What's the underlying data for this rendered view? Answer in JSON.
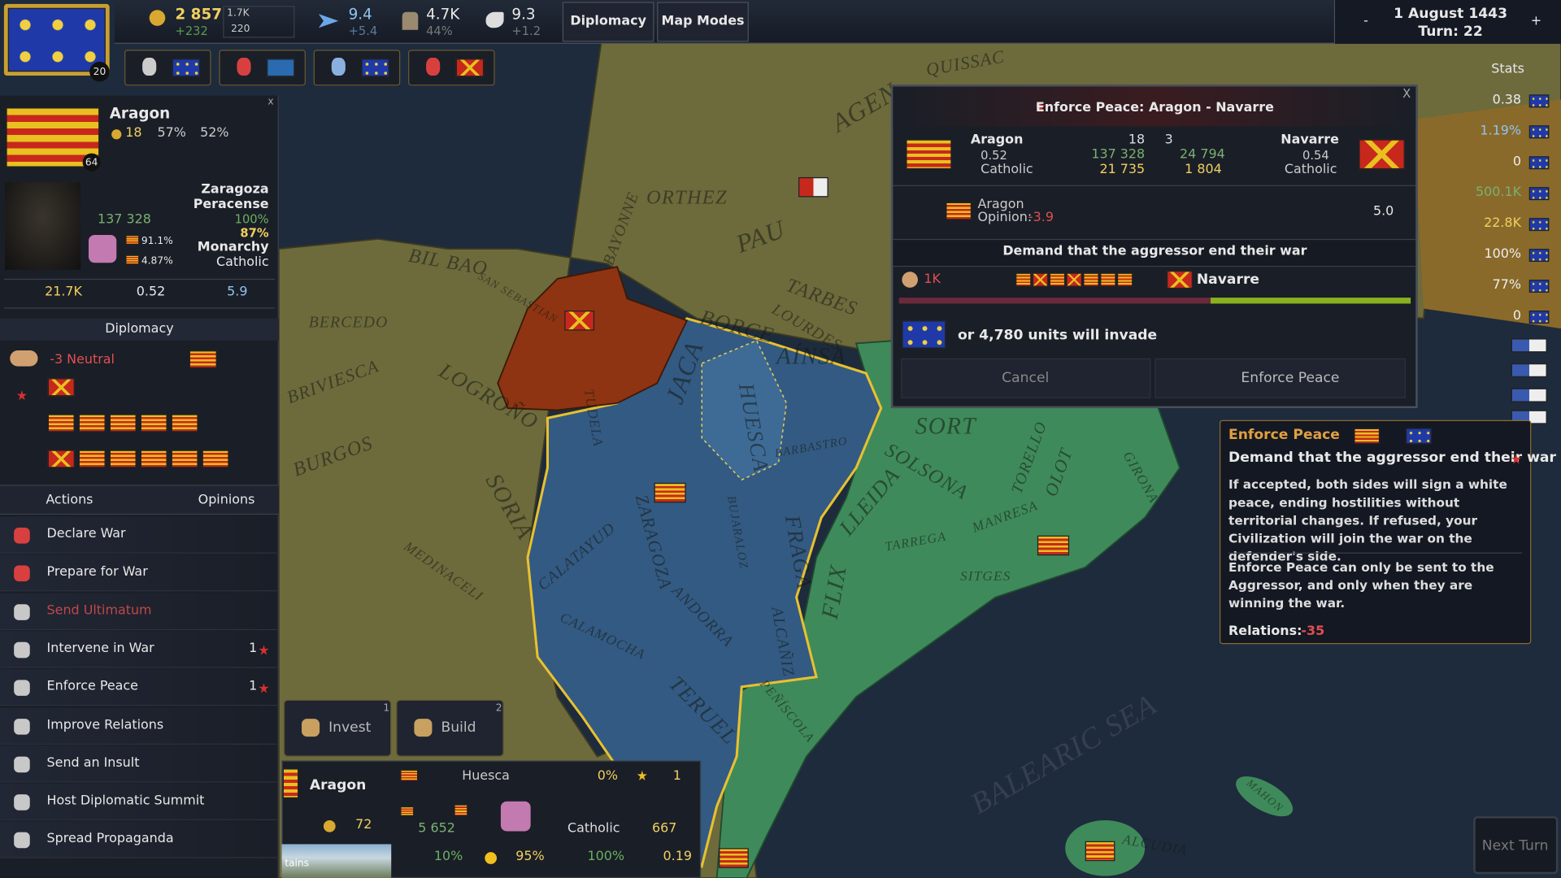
{
  "top_bar": {
    "player_level": "20",
    "gold": "2 857",
    "gold_change": "+232",
    "graph_max": "1.7K",
    "graph_min": "220",
    "manpower": "9.4",
    "manpower_change": "+5.4",
    "army": "4.7K",
    "army_pct": "44%",
    "diplomacy": "9.3",
    "diplomacy_change": "+1.2",
    "buttons": [
      "Diplomacy",
      "Map Modes"
    ],
    "zoom_out": "-",
    "zoom_in": "+",
    "date": "1 August 1443",
    "turn": "Turn: 22"
  },
  "country_panel": {
    "close": "x",
    "name": "Aragon",
    "level": "64",
    "gold": "18",
    "stability": "57%",
    "legitimacy": "52%",
    "manpower": "137 328",
    "capital": "Zaragoza",
    "ruler": "Peracense",
    "loyalty": "100%",
    "happiness": "87%",
    "culture_share": "91.1%",
    "minority_share": "4.87%",
    "government": "Monarchy",
    "religion": "Catholic",
    "industry": "21.7K",
    "tech": "0.52",
    "speed": "5.9"
  },
  "diplomacy": {
    "header": "Diplomacy",
    "relation": "-3 Neutral",
    "tabs": [
      "Actions",
      "Opinions"
    ],
    "actions": [
      {
        "label": "Declare War"
      },
      {
        "label": "Prepare for War"
      },
      {
        "label": "Send Ultimatum"
      },
      {
        "label": "Intervene in War",
        "count": "1"
      },
      {
        "label": "Enforce Peace",
        "count": "1"
      },
      {
        "label": "Improve Relations"
      },
      {
        "label": "Send an Insult"
      },
      {
        "label": "Host Diplomatic Summit"
      },
      {
        "label": "Spread Propaganda"
      }
    ]
  },
  "province_panel": {
    "buttons": [
      {
        "label": "Invest",
        "hotkey": "1"
      },
      {
        "label": "Build",
        "hotkey": "2"
      }
    ],
    "owner": "Aragon",
    "gold": "72",
    "name": "Huesca",
    "unrest": "0%",
    "rank": "1",
    "population": "5 652",
    "religion": "Catholic",
    "buildings": "667",
    "growth": "10%",
    "happiness": "95%",
    "control": "100%",
    "income": "0.19",
    "terrain": "tains"
  },
  "dialog": {
    "close": "X",
    "title": "Enforce Peace: Aragon - Navarre",
    "left": {
      "name": "Aragon",
      "tech": "0.52",
      "religion": "Catholic"
    },
    "middle": [
      "18",
      "3",
      "137 328",
      "24 794",
      "21 735",
      "1 804"
    ],
    "right": {
      "name": "Navarre",
      "tech": "0.54",
      "religion": "Catholic"
    },
    "opinion": {
      "name": "Aragon",
      "label": "Opinion:",
      "value": "-3.9",
      "score": "5.0"
    },
    "demand": "Demand that the aggressor end their war",
    "war": {
      "casualties": "1K",
      "defender": "Navarre"
    },
    "invade": "or 4,780 units will invade",
    "buttons": [
      "Cancel",
      "Enforce Peace"
    ]
  },
  "tooltip": {
    "title": "Enforce Peace",
    "subtitle": "Demand that the aggressor end their war",
    "paragraphs": [
      "If accepted, both sides will sign a white peace, ending hostilities without territorial changes. If refused, your Civilization will join the war on the defender's side.",
      "Enforce Peace can only be sent to the Aggressor, and only when they are winning the war."
    ],
    "relations_label": "Relations:",
    "relations_value": "-35"
  },
  "stats_panel": {
    "title": "Stats",
    "values": [
      "0.38",
      "1.19%",
      "0",
      "500.1K",
      "22.8K",
      "100%",
      "77%",
      "0"
    ]
  },
  "next_turn": "Next Turn",
  "map_labels": [
    "AGEN",
    "QUISSAC",
    "ORTHEZ",
    "PAU",
    "BAYONNE",
    "TARBES",
    "LOURDES",
    "BORCE",
    "BIL BAO",
    "SAN SEBASTIAN",
    "BERCEDO",
    "BRIVIESCA",
    "LOGROÑO",
    "BURGOS",
    "SORIA",
    "MEDINACELI",
    "TUDELA",
    "JACA",
    "HUESCA",
    "AÍNSA",
    "BARBASTRO",
    "ZARAGOZA",
    "BUJARALOZ",
    "FRAGA",
    "CALATAYUD",
    "ANDORRA",
    "CALAMOCHA",
    "ALCAÑIZ",
    "TERUEL",
    "PEÑÍSCOLA",
    "FLIX",
    "SORT",
    "SOLSONA",
    "LLEIDA",
    "TARREGA",
    "MANRESA",
    "SITGES",
    "TORELLO",
    "OLOT",
    "GIRONA",
    "BALEARIC SEA",
    "ALCUDIA",
    "MAHON"
  ]
}
